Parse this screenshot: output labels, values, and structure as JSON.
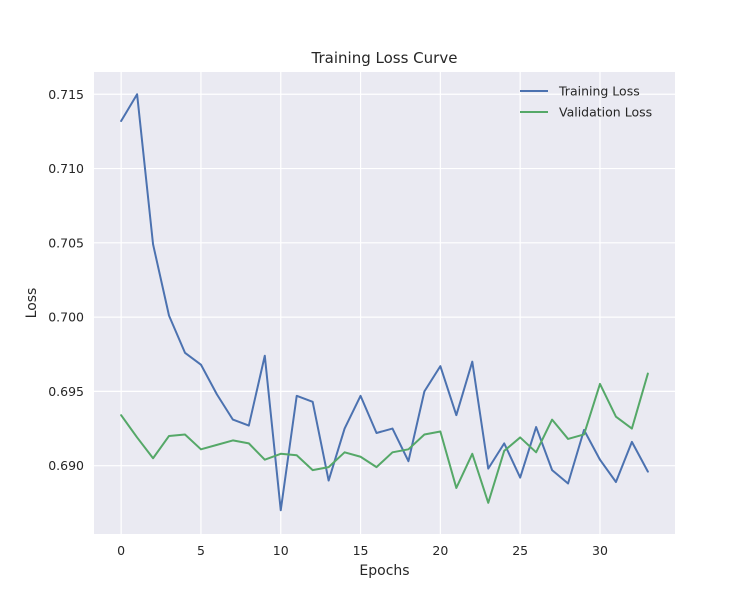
{
  "chart_data": {
    "type": "line",
    "title": "Training Loss Curve",
    "xlabel": "Epochs",
    "ylabel": "Loss",
    "xlim": [
      -1.7,
      34.7
    ],
    "ylim": [
      0.6854,
      0.7165
    ],
    "xticks": [
      0,
      5,
      10,
      15,
      20,
      25,
      30
    ],
    "yticks": [
      0.69,
      0.695,
      0.7,
      0.705,
      0.71,
      0.715
    ],
    "ytick_labels": [
      "0.690",
      "0.695",
      "0.700",
      "0.705",
      "0.710",
      "0.715"
    ],
    "grid": true,
    "legend_position": "top-right",
    "x": [
      0,
      1,
      2,
      3,
      4,
      5,
      6,
      7,
      8,
      9,
      10,
      11,
      12,
      13,
      14,
      15,
      16,
      17,
      18,
      19,
      20,
      21,
      22,
      23,
      24,
      25,
      26,
      27,
      28,
      29,
      30,
      31,
      32,
      33
    ],
    "series": [
      {
        "name": "Training Loss",
        "color": "#4c72b0",
        "values": [
          0.7132,
          0.715,
          0.7049,
          0.7001,
          0.6976,
          0.6968,
          0.6948,
          0.6931,
          0.6927,
          0.6974,
          0.687,
          0.6947,
          0.6943,
          0.689,
          0.6925,
          0.6947,
          0.6922,
          0.6925,
          0.6903,
          0.695,
          0.6967,
          0.6934,
          0.697,
          0.6898,
          0.6915,
          0.6892,
          0.6926,
          0.6897,
          0.6888,
          0.6924,
          0.6904,
          0.6889,
          0.6916,
          0.6896
        ]
      },
      {
        "name": "Validation Loss",
        "color": "#55a868",
        "values": [
          0.6934,
          0.6919,
          0.6905,
          0.692,
          0.6921,
          0.6911,
          0.6914,
          0.6917,
          0.6915,
          0.6904,
          0.6908,
          0.6907,
          0.6897,
          0.6899,
          0.6909,
          0.6906,
          0.6899,
          0.6909,
          0.6911,
          0.6921,
          0.6923,
          0.6885,
          0.6908,
          0.6875,
          0.691,
          0.6919,
          0.6909,
          0.6931,
          0.6918,
          0.6921,
          0.6955,
          0.6933,
          0.6925,
          0.6962
        ]
      }
    ]
  }
}
